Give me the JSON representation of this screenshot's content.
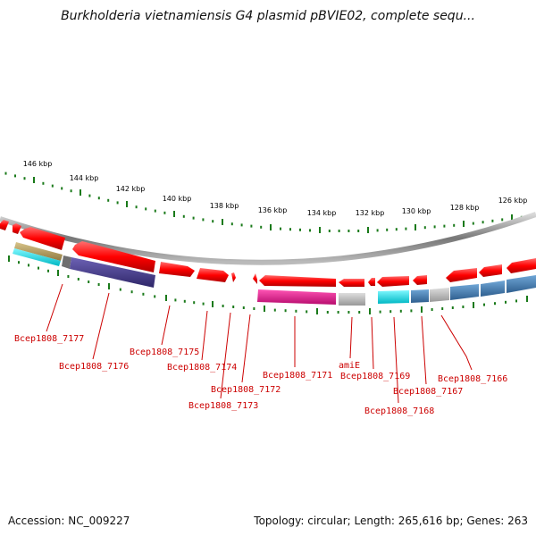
{
  "title": "Burkholderia vietnamiensis G4 plasmid pBVIE02, complete sequ...",
  "footer": {
    "accession": "Accession: NC_009227",
    "topology": "Topology: circular; Length: 265,616 bp; Genes: 263"
  },
  "scale": {
    "unit": "kbp",
    "labeled_ticks": [
      "146 kbp",
      "144 kbp",
      "142 kbp",
      "140 kbp",
      "138 kbp",
      "136 kbp",
      "134 kbp",
      "132 kbp",
      "130 kbp",
      "128 kbp",
      "126 kbp"
    ]
  },
  "genes": [
    "Bcep1808_7177",
    "Bcep1808_7176",
    "Bcep1808_7175",
    "Bcep1808_7174",
    "Bcep1808_7172",
    "Bcep1808_7173",
    "Bcep1808_7171",
    "amiE",
    "Bcep1808_7169",
    "Bcep1808_7168",
    "Bcep1808_7167",
    "Bcep1808_7166"
  ],
  "colors": {
    "gene_forward": "#ff0000",
    "backbone": "#888888",
    "tick": "#1a7a1a",
    "label": "#cc0000",
    "feature_olive": "#b8a060",
    "feature_cyan": "#00e5ee",
    "feature_purple": "#4a3f8f",
    "feature_magenta": "#e0148a",
    "feature_gray": "#b4b4b4",
    "feature_steelblue": "#4682b4"
  }
}
